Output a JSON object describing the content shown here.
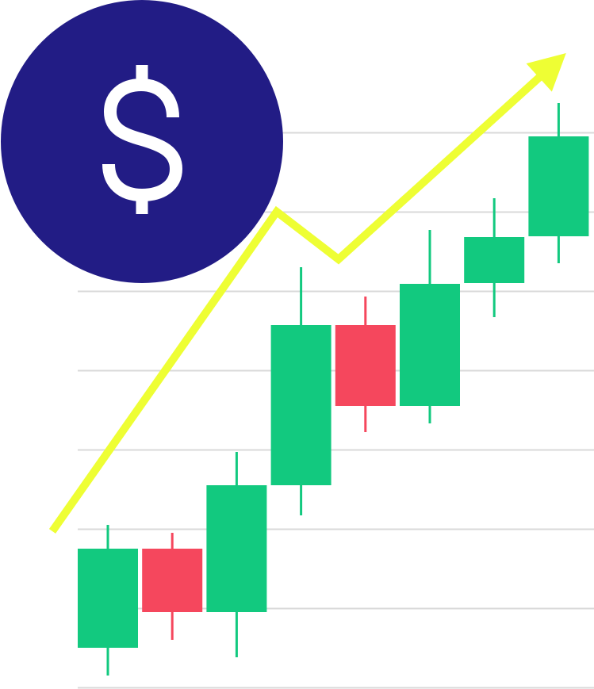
{
  "colors": {
    "background": "#ffffff",
    "grid": "#d9d9d9",
    "bullish": "#12c97f",
    "bearish": "#f5475d",
    "trend": "#eefe34",
    "badge": "#221c85",
    "badge_symbol": "#ffffff"
  },
  "icons": {
    "badge": "dollar-sign-icon",
    "trend": "trend-arrow-up-icon"
  },
  "chart_data": {
    "type": "candlestick",
    "grid": true,
    "candles": [
      {
        "open": 0.5,
        "close": 1.75,
        "low": 0.15,
        "high": 2.05,
        "direction": "up"
      },
      {
        "open": 1.75,
        "close": 0.95,
        "low": 0.6,
        "high": 1.95,
        "direction": "down"
      },
      {
        "open": 0.95,
        "close": 2.55,
        "low": 0.38,
        "high": 2.97,
        "direction": "up"
      },
      {
        "open": 2.55,
        "close": 4.57,
        "low": 2.17,
        "high": 5.3,
        "direction": "up"
      },
      {
        "open": 4.57,
        "close": 3.55,
        "low": 3.22,
        "high": 4.93,
        "direction": "down"
      },
      {
        "open": 3.55,
        "close": 5.09,
        "low": 3.33,
        "high": 5.77,
        "direction": "up"
      },
      {
        "open": 5.1,
        "close": 5.68,
        "low": 4.67,
        "high": 6.17,
        "direction": "up"
      },
      {
        "open": 5.69,
        "close": 6.95,
        "low": 5.35,
        "high": 7.37,
        "direction": "up"
      }
    ],
    "trend_line": [
      {
        "x": 0,
        "y": 1.97
      },
      {
        "x": 3.45,
        "y": 6.0
      },
      {
        "x": 4.4,
        "y": 5.4
      },
      {
        "x": 7.9,
        "y": 8.0
      }
    ],
    "ylim": [
      0,
      8
    ]
  }
}
